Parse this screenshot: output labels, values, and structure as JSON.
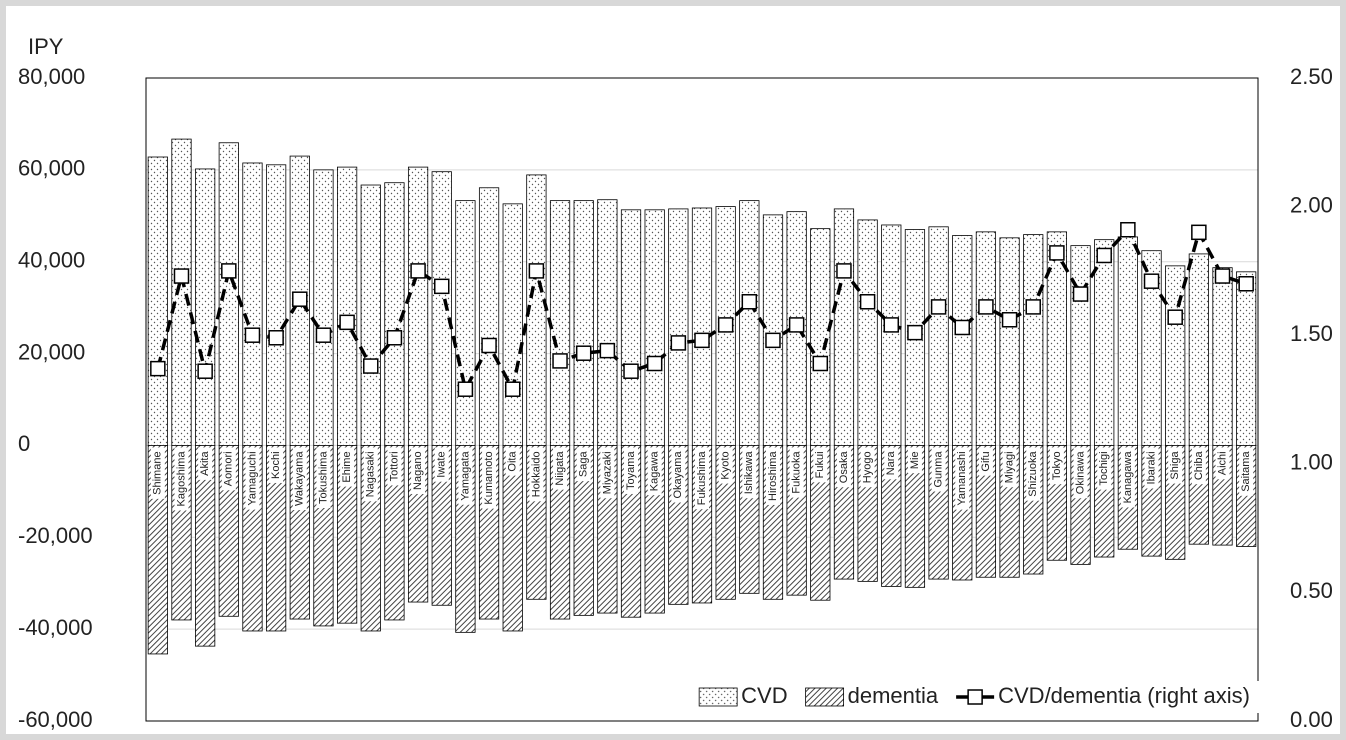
{
  "chart_data": {
    "type": "bar-line",
    "y_label": "IPY",
    "categories": [
      "Shimane",
      "Kagoshima",
      "Akita",
      "Aomori",
      "Yamaguchi",
      "Kochi",
      "Wakayama",
      "Tokushima",
      "Ehime",
      "Nagasaki",
      "Tottori",
      "Nagano",
      "Iwate",
      "Yamagata",
      "Kumamoto",
      "Oita",
      "Hokkaido",
      "Niigata",
      "Saga",
      "Miyazaki",
      "Toyama",
      "Kagawa",
      "Okayama",
      "Fukushima",
      "Kyoto",
      "Ishikawa",
      "Hiroshima",
      "Fukuoka",
      "Fukui",
      "Osaka",
      "Hyogo",
      "Nara",
      "Mie",
      "Gunma",
      "Yamanashi",
      "Gifu",
      "Miyagi",
      "Shizuoka",
      "Tokyo",
      "Okinawa",
      "Tochigi",
      "Kanagawa",
      "Ibaraki",
      "Shiga",
      "Chiba",
      "Aichi",
      "Saitama"
    ],
    "series": [
      {
        "name": "CVD",
        "color": "#000000",
        "pattern": "dots",
        "values": [
          62800,
          66700,
          60200,
          65900,
          61500,
          61100,
          63000,
          60000,
          60600,
          56700,
          57200,
          60600,
          59600,
          53300,
          56100,
          52600,
          58900,
          53300,
          53300,
          53500,
          51300,
          51300,
          51500,
          51700,
          52000,
          53300,
          50200,
          50900,
          47200,
          51500,
          49100,
          48000,
          47000,
          47600,
          45700,
          46500,
          45200,
          45900,
          46500,
          43500,
          44800,
          45400,
          42400,
          39100,
          41700,
          38700,
          37800
        ]
      },
      {
        "name": "dementia",
        "color": "#000000",
        "pattern": "hatch",
        "values": [
          -45400,
          -38000,
          -43700,
          -37200,
          -40400,
          -40400,
          -37800,
          -39300,
          -38700,
          -40400,
          -38000,
          -34100,
          -34800,
          -40700,
          -37800,
          -40400,
          -33500,
          -37800,
          -37000,
          -36500,
          -37400,
          -36500,
          -34600,
          -34300,
          -33500,
          -32200,
          -33500,
          -32600,
          -33700,
          -29100,
          -29600,
          -30700,
          -30900,
          -29100,
          -29300,
          -28700,
          -28700,
          -28000,
          -25000,
          -25900,
          -24300,
          -22600,
          -24100,
          -24800,
          -21500,
          -21700,
          -22000
        ]
      },
      {
        "name": "CVD/dementia (right axis)",
        "color": "#000000",
        "axis": "y2",
        "values": [
          1.37,
          1.73,
          1.36,
          1.75,
          1.5,
          1.49,
          1.64,
          1.5,
          1.55,
          1.38,
          1.49,
          1.75,
          1.69,
          1.29,
          1.46,
          1.29,
          1.75,
          1.4,
          1.43,
          1.44,
          1.36,
          1.39,
          1.47,
          1.48,
          1.54,
          1.63,
          1.48,
          1.54,
          1.39,
          1.75,
          1.63,
          1.54,
          1.51,
          1.61,
          1.53,
          1.61,
          1.56,
          1.61,
          1.82,
          1.66,
          1.81,
          1.91,
          1.71,
          1.57,
          1.9,
          1.73,
          1.7
        ]
      }
    ],
    "ylim": [
      -60000,
      80000
    ],
    "yticks": [
      {
        "value": -60000,
        "label": "-60,000"
      },
      {
        "value": -40000,
        "label": "-40,000"
      },
      {
        "value": -20000,
        "label": "-20,000"
      },
      0,
      {
        "value": 20000,
        "label": "20,000"
      },
      {
        "value": 40000,
        "label": "40,000"
      },
      {
        "value": 60000,
        "label": "60,000"
      },
      {
        "value": 80000,
        "label": "80,000"
      }
    ],
    "y2lim": [
      0,
      2.5
    ],
    "y2ticks": [
      {
        "value": 0,
        "label": "0.00"
      },
      {
        "value": 0.5,
        "label": "0.50"
      },
      {
        "value": 1,
        "label": "1.00"
      },
      {
        "value": 1.5,
        "label": "1.50"
      },
      {
        "value": 2,
        "label": "2.00"
      },
      {
        "value": 2.5,
        "label": "2.50"
      }
    ],
    "grid": true,
    "legend": "bottom-right"
  }
}
